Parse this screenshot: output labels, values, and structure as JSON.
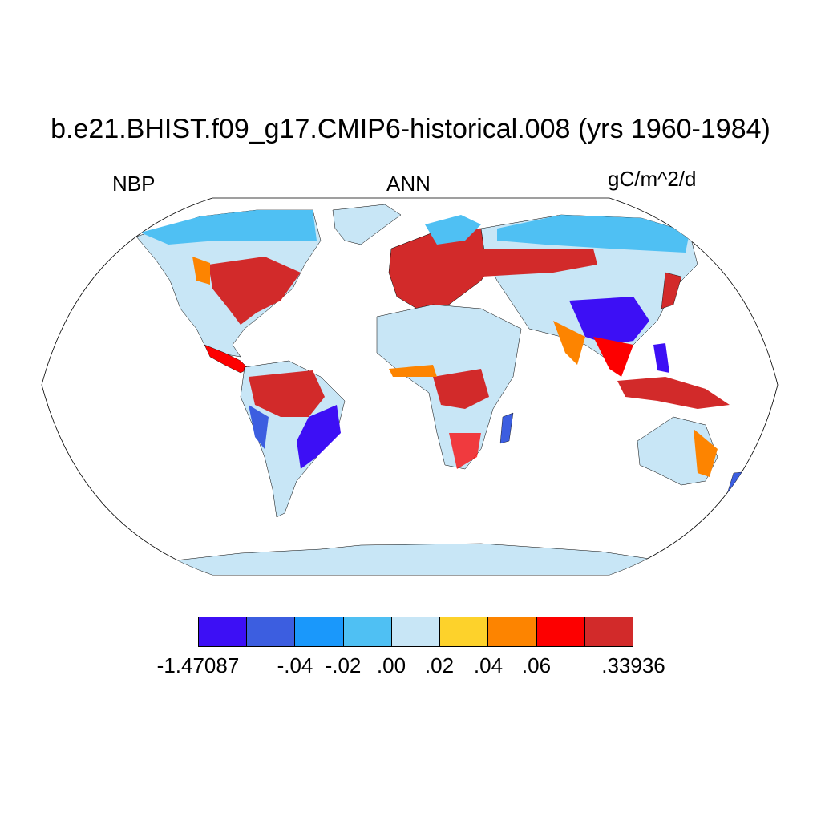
{
  "title": "b.e21.BHIST.f09_g17.CMIP6-historical.008 (yrs 1960-1984)",
  "left_label": "NBP",
  "center_label": "ANN",
  "right_label": "gC/m^2/d",
  "colorbar": {
    "colors": [
      "#3d0ff5",
      "#3c5ee0",
      "#1a98fb",
      "#4fc0f3",
      "#c8e6f6",
      "#fdd22b",
      "#fd8400",
      "#fd0000",
      "#d22a2a"
    ],
    "tick_labels": [
      "-1.47087",
      "-.04",
      "-.02",
      ".00",
      ".02",
      ".04",
      ".06",
      ".33936"
    ]
  },
  "map": {
    "projection": "Robinson",
    "ocean_color": "#ffffff",
    "land_base_color": "#c8e6f6"
  }
}
